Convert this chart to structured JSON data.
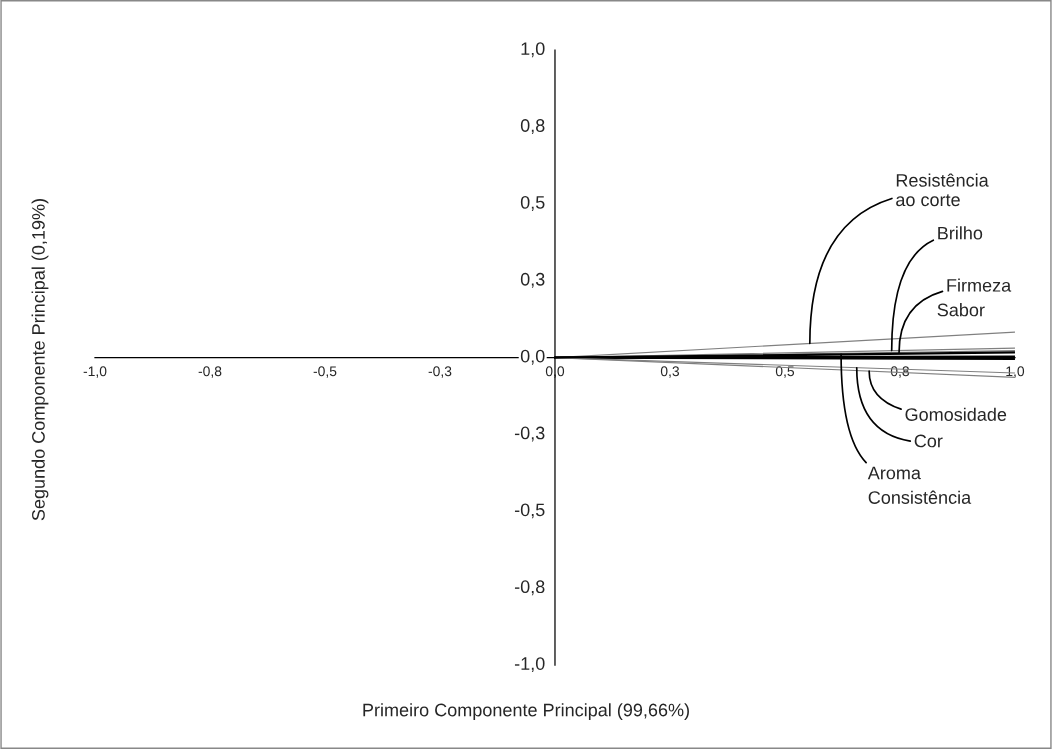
{
  "chart_data": {
    "type": "line",
    "xlabel": "Primeiro Componente Principal (99,66%)",
    "ylabel": "Segundo Componente Principal (0,19%)",
    "x": [
      0,
      1.0
    ],
    "series": [
      {
        "color": "#808080",
        "values": [
          0,
          0.083
        ]
      },
      {
        "color": "#808080",
        "values": [
          0,
          0.031
        ]
      },
      {
        "color": "#808080",
        "values": [
          0,
          0.023
        ]
      },
      {
        "color": "#000000",
        "values": [
          0,
          0.017
        ]
      },
      {
        "color": "#000000",
        "values": [
          0,
          0.003
        ]
      },
      {
        "color": "#000000",
        "values": [
          0,
          -0.004
        ]
      },
      {
        "color": "#808080",
        "values": [
          0,
          -0.05
        ]
      },
      {
        "color": "#808080",
        "values": [
          0,
          -0.064
        ]
      }
    ],
    "annotations": [
      {
        "text": "Resistência\nao corte",
        "x": 0.554,
        "y": 0.046
      },
      {
        "text": "Brilho",
        "x": 0.732,
        "y": 0.023
      },
      {
        "text": "Firmeza",
        "x": 0.748,
        "y": 0.017
      },
      "Sabor",
      {
        "text": "Gomosidade",
        "x": 0.683,
        "y": -0.044
      },
      {
        "text": "Cor",
        "x": 0.656,
        "y": -0.033
      },
      {
        "text": "Aroma",
        "x": 0.622,
        "y": 0.011
      },
      "Consistência"
    ],
    "xlim": [
      -1.0,
      1.0
    ],
    "ylim": [
      -1.0,
      1.0
    ],
    "xticks": [
      {
        "value": -1.0,
        "label": "-1,0"
      },
      {
        "value": -0.75,
        "label": "-0,8"
      },
      {
        "value": -0.5,
        "label": "-0,5"
      },
      {
        "value": -0.25,
        "label": "-0,3"
      },
      {
        "value": 0,
        "label": "0,0"
      },
      {
        "value": 0.25,
        "label": "0,3"
      },
      {
        "value": 0.5,
        "label": "0,5"
      },
      {
        "value": 0.75,
        "label": "0,8"
      },
      {
        "value": 1.0,
        "label": "1,0"
      }
    ],
    "yticks": [
      {
        "value": -1.0,
        "label": "-1,0"
      },
      {
        "value": -0.75,
        "label": "-0,8"
      },
      {
        "value": -0.5,
        "label": "-0,5"
      },
      {
        "value": -0.25,
        "label": "-0,3"
      },
      {
        "value": 0,
        "label": "0,0"
      },
      {
        "value": 0.25,
        "label": "0,3"
      },
      {
        "value": 0.5,
        "label": "0,5"
      },
      {
        "value": 0.75,
        "label": "0,8"
      },
      {
        "value": 1.0,
        "label": "1,0"
      }
    ],
    "grid": false,
    "marker": "none",
    "line_style": "solid"
  }
}
